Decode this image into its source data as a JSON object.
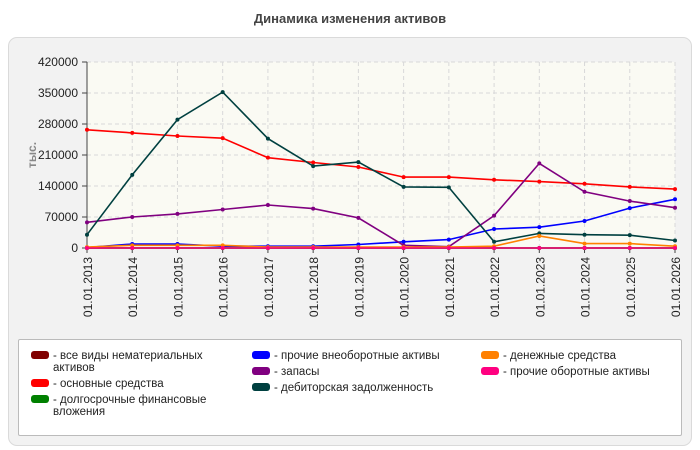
{
  "chart_data": {
    "type": "line",
    "title": "Динамика изменения активов",
    "ylabel": "тыс.",
    "xlabel": "",
    "ylim": [
      0,
      420000
    ],
    "yticks": [
      "420000",
      "350000",
      "280000",
      "210000",
      "140000",
      "70000",
      "0"
    ],
    "categories": [
      "01.01.2013",
      "01.01.2014",
      "01.01.2015",
      "01.01.2016",
      "01.01.2017",
      "01.01.2018",
      "01.01.2019",
      "01.01.2020",
      "01.01.2021",
      "01.01.2022",
      "01.01.2023",
      "01.01.2024",
      "01.01.2025",
      "01.01.2026"
    ],
    "grid": true,
    "legend": "bottom",
    "series": [
      {
        "name": "- все виды нематериальных активов",
        "color": "#800000",
        "values": [
          0,
          0,
          0,
          0,
          0,
          0,
          0,
          0,
          0,
          0,
          0,
          0,
          0,
          0
        ]
      },
      {
        "name": "- основные средства",
        "color": "#ff0000",
        "values": [
          267000,
          260000,
          253000,
          248000,
          204000,
          193000,
          183000,
          160000,
          160000,
          154000,
          150000,
          145000,
          138000,
          133000
        ]
      },
      {
        "name": "- долгосрочные финансовые вложения",
        "color": "#008000",
        "values": [
          0,
          0,
          0,
          0,
          0,
          0,
          0,
          0,
          0,
          0,
          0,
          0,
          0,
          0
        ]
      },
      {
        "name": "- прочие внеоборотные активы",
        "color": "#0000ff",
        "values": [
          1000,
          9000,
          9000,
          4000,
          4000,
          4000,
          8000,
          14000,
          19000,
          43000,
          47000,
          61000,
          90000,
          110000
        ]
      },
      {
        "name": "- запасы",
        "color": "#800080",
        "values": [
          58000,
          70000,
          77000,
          87000,
          97000,
          89000,
          68000,
          6000,
          3000,
          73000,
          191000,
          127000,
          106000,
          91000
        ]
      },
      {
        "name": "- дебиторская задолженность",
        "color": "#004040",
        "values": [
          30000,
          165000,
          290000,
          352000,
          247000,
          185000,
          194000,
          138000,
          137000,
          14000,
          33000,
          30000,
          29000,
          17000
        ]
      },
      {
        "name": "- денежные средства",
        "color": "#ff8000",
        "values": [
          2000,
          6000,
          6000,
          6000,
          2000,
          2000,
          2000,
          2000,
          2000,
          4000,
          27000,
          10000,
          10000,
          4000
        ]
      },
      {
        "name": "- прочие оборотные активы",
        "color": "#ff0080",
        "values": [
          0,
          0,
          0,
          0,
          0,
          0,
          0,
          0,
          0,
          0,
          0,
          0,
          0,
          0
        ]
      }
    ]
  }
}
